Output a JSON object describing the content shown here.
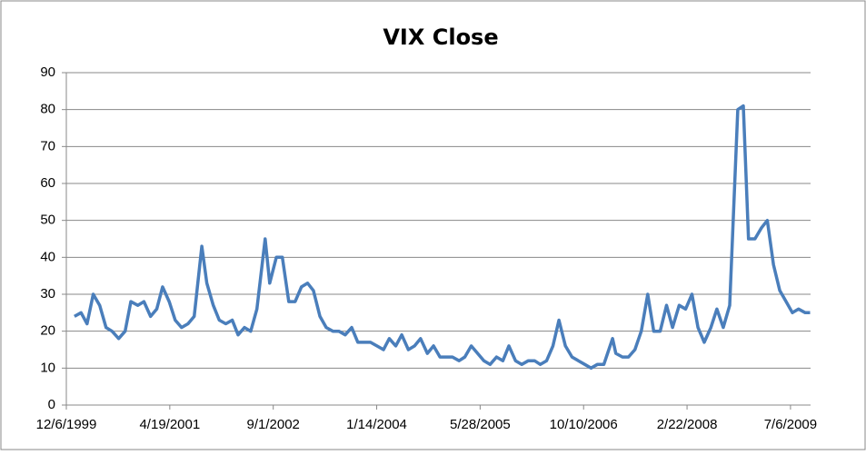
{
  "chart_data": {
    "type": "line",
    "title": "VIX Close",
    "x": [
      "1/14/2000",
      "2/15/2000",
      "3/15/2000",
      "4/14/2000",
      "5/15/2000",
      "6/15/2000",
      "7/14/2000",
      "8/15/2000",
      "9/15/2000",
      "10/13/2000",
      "11/15/2000",
      "12/15/2000",
      "1/16/2001",
      "2/15/2001",
      "3/15/2001",
      "4/16/2001",
      "5/15/2001",
      "6/15/2001",
      "7/16/2001",
      "8/15/2001",
      "9/21/2001",
      "10/15/2001",
      "11/15/2001",
      "12/14/2001",
      "1/15/2002",
      "2/15/2002",
      "3/15/2002",
      "4/15/2002",
      "5/15/2002",
      "6/14/2002",
      "7/24/2002",
      "8/15/2002",
      "9/16/2002",
      "10/15/2002",
      "11/15/2002",
      "12/16/2002",
      "1/15/2003",
      "2/14/2003",
      "3/14/2003",
      "4/15/2003",
      "5/15/2003",
      "6/16/2003",
      "7/15/2003",
      "8/15/2003",
      "9/15/2003",
      "10/15/2003",
      "11/14/2003",
      "12/15/2003",
      "1/15/2004",
      "2/16/2004",
      "3/15/2004",
      "4/15/2004",
      "5/14/2004",
      "6/15/2004",
      "7/15/2004",
      "8/13/2004",
      "9/15/2004",
      "10/15/2004",
      "11/15/2004",
      "12/15/2004",
      "1/14/2005",
      "2/15/2005",
      "3/15/2005",
      "4/15/2005",
      "5/16/2005",
      "6/15/2005",
      "7/15/2005",
      "8/15/2005",
      "9/15/2005",
      "10/14/2005",
      "11/15/2005",
      "12/15/2005",
      "1/16/2006",
      "2/15/2006",
      "3/15/2006",
      "4/14/2006",
      "5/15/2006",
      "6/13/2006",
      "7/14/2006",
      "8/15/2006",
      "9/15/2006",
      "10/16/2006",
      "11/15/2006",
      "12/15/2006",
      "1/16/2007",
      "2/27/2007",
      "3/15/2007",
      "4/16/2007",
      "5/15/2007",
      "6/15/2007",
      "7/16/2007",
      "8/16/2007",
      "9/14/2007",
      "10/15/2007",
      "11/15/2007",
      "12/14/2007",
      "1/15/2008",
      "2/15/2008",
      "3/17/2008",
      "4/15/2008",
      "5/15/2008",
      "6/16/2008",
      "7/15/2008",
      "8/15/2008",
      "9/15/2008",
      "10/24/2008",
      "11/20/2008",
      "12/15/2008",
      "1/15/2009",
      "2/16/2009",
      "3/16/2009",
      "4/15/2009",
      "5/15/2009",
      "6/15/2009",
      "7/15/2009",
      "8/14/2009",
      "9/15/2009",
      "10/9/2009"
    ],
    "series": [
      {
        "name": "VIX Close",
        "color": "#4a7ebb",
        "values": [
          24,
          25,
          22,
          30,
          27,
          21,
          20,
          18,
          20,
          28,
          27,
          28,
          24,
          26,
          32,
          28,
          23,
          21,
          22,
          24,
          43,
          33,
          27,
          23,
          22,
          23,
          19,
          21,
          20,
          26,
          45,
          33,
          40,
          40,
          28,
          28,
          32,
          33,
          31,
          24,
          21,
          20,
          20,
          19,
          21,
          17,
          17,
          17,
          16,
          15,
          18,
          16,
          19,
          15,
          16,
          18,
          14,
          16,
          13,
          13,
          13,
          12,
          13,
          16,
          14,
          12,
          11,
          13,
          12,
          16,
          12,
          11,
          12,
          12,
          11,
          12,
          16,
          23,
          16,
          13,
          12,
          11,
          10,
          11,
          11,
          18,
          14,
          13,
          13,
          15,
          20,
          30,
          20,
          20,
          27,
          21,
          27,
          26,
          30,
          21,
          17,
          21,
          26,
          21,
          27,
          80,
          81,
          45,
          45,
          48,
          50,
          38,
          31,
          28,
          25,
          26,
          25,
          25
        ]
      }
    ],
    "xlim": [
      "12/6/1999",
      "10/11/2009"
    ],
    "xticks": [
      "12/6/1999",
      "4/19/2001",
      "9/1/2002",
      "1/14/2004",
      "5/28/2005",
      "10/10/2006",
      "2/22/2008",
      "7/6/2009"
    ],
    "ylim": [
      0,
      90
    ],
    "yticks": [
      0,
      10,
      20,
      30,
      40,
      50,
      60,
      70,
      80,
      90
    ],
    "grid": true
  }
}
